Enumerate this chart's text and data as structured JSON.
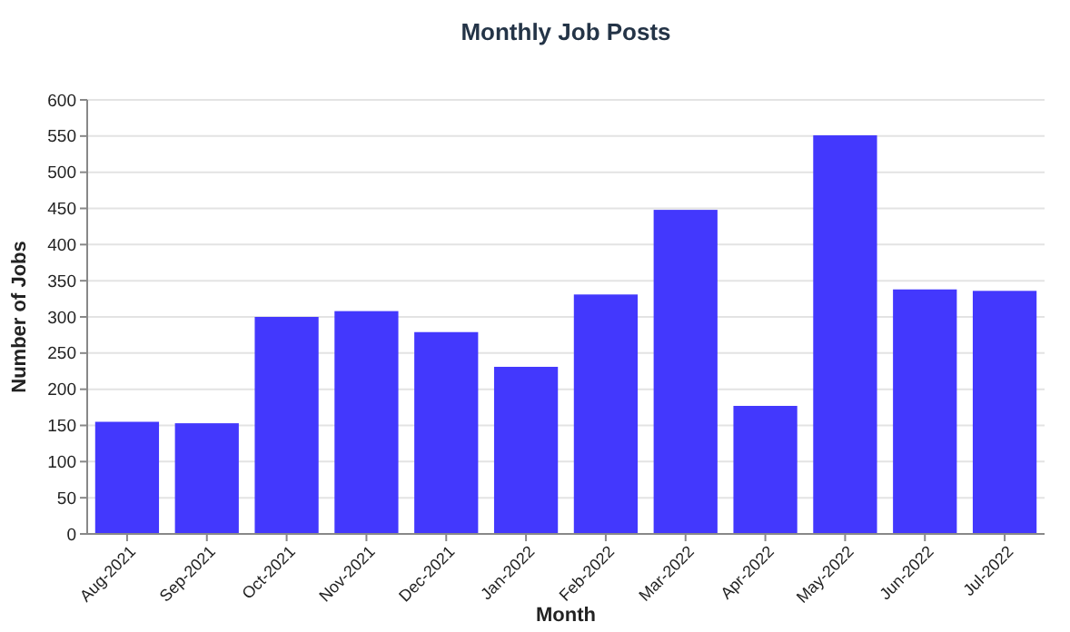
{
  "chart_data": {
    "type": "bar",
    "title": "Monthly Job Posts",
    "xlabel": "Month",
    "ylabel": "Number of Jobs",
    "categories": [
      "Aug-2021",
      "Sep-2021",
      "Oct-2021",
      "Nov-2021",
      "Dec-2021",
      "Jan-2022",
      "Feb-2022",
      "Mar-2022",
      "Apr-2022",
      "May-2022",
      "Jun-2022",
      "Jul-2022"
    ],
    "values": [
      155,
      153,
      300,
      308,
      279,
      231,
      331,
      448,
      177,
      551,
      338,
      336
    ],
    "color": "#4338fd",
    "ylim": [
      0,
      600
    ],
    "yticks": [
      0,
      50,
      100,
      150,
      200,
      250,
      300,
      350,
      400,
      450,
      500,
      550,
      600
    ],
    "grid": "y"
  }
}
